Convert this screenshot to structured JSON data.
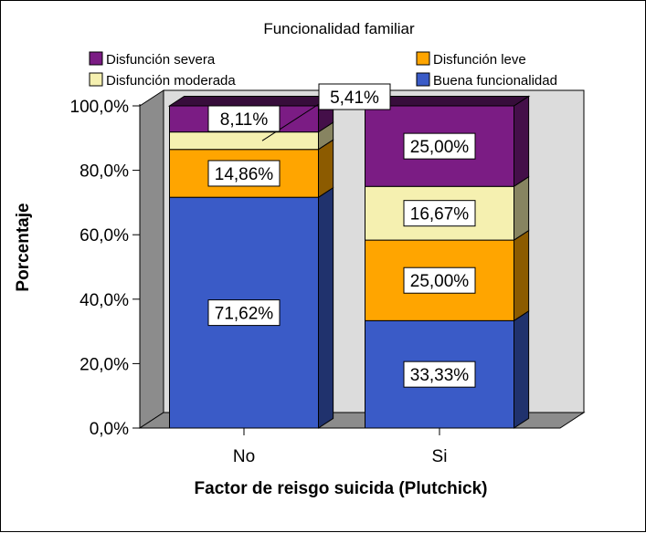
{
  "chart_data": {
    "type": "bar",
    "stacked": true,
    "title": "Funcionalidad familiar",
    "xlabel": "Factor de reisgo suicida (Plutchick)",
    "ylabel": "Porcentaje",
    "categories": [
      "No",
      "Si"
    ],
    "ylim": [
      0,
      100
    ],
    "yticks": [
      "0,0%",
      "20,0%",
      "40,0%",
      "60,0%",
      "80,0%",
      "100,0%"
    ],
    "series": [
      {
        "name": "Buena funcionalidad",
        "color": "#3a5bc7",
        "values": [
          71.62,
          33.33
        ],
        "labels": [
          "71,62%",
          "33,33%"
        ]
      },
      {
        "name": "Disfunción leve",
        "color": "#ffa500",
        "values": [
          14.86,
          25.0
        ],
        "labels": [
          "14,86%",
          "25,00%"
        ]
      },
      {
        "name": "Disfunción moderada",
        "color": "#f5f0b0",
        "values": [
          5.41,
          16.67
        ],
        "labels": [
          "5,41%",
          "16,67%"
        ]
      },
      {
        "name": "Disfunción severa",
        "color": "#7b1c84",
        "values": [
          8.11,
          25.0
        ],
        "labels": [
          "8,11%",
          "25,00%"
        ]
      }
    ],
    "legend_order": [
      "Disfunción severa",
      "Disfunción leve",
      "Disfunción moderada",
      "Buena funcionalidad"
    ],
    "legend_position": "top",
    "three_d": true
  }
}
